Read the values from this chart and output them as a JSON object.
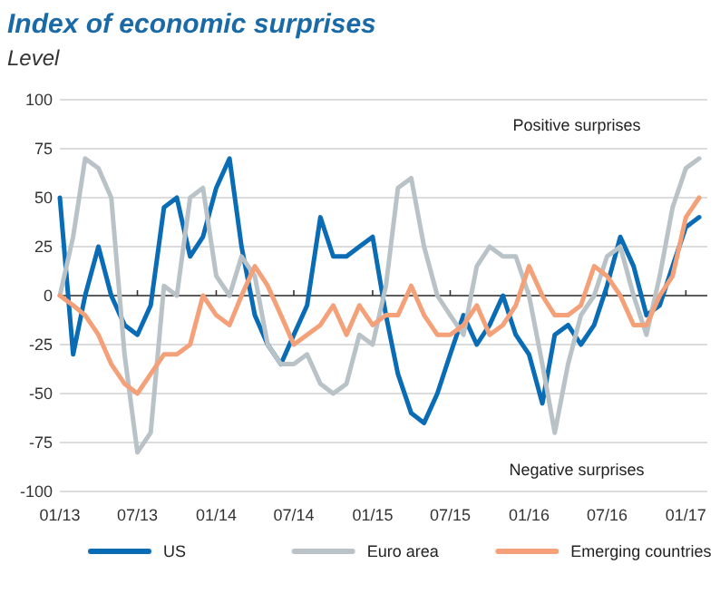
{
  "chart_data": {
    "type": "line",
    "title": "Index of economic surprises",
    "subtitle": "Level",
    "x": [
      "2013-01",
      "2013-02",
      "2013-03",
      "2013-04",
      "2013-05",
      "2013-06",
      "2013-07",
      "2013-08",
      "2013-09",
      "2013-10",
      "2013-11",
      "2013-12",
      "2014-01",
      "2014-02",
      "2014-03",
      "2014-04",
      "2014-05",
      "2014-06",
      "2014-07",
      "2014-08",
      "2014-09",
      "2014-10",
      "2014-11",
      "2014-12",
      "2015-01",
      "2015-02",
      "2015-03",
      "2015-04",
      "2015-05",
      "2015-06",
      "2015-07",
      "2015-08",
      "2015-09",
      "2015-10",
      "2015-11",
      "2015-12",
      "2016-01",
      "2016-02",
      "2016-03",
      "2016-04",
      "2016-05",
      "2016-06",
      "2016-07",
      "2016-08",
      "2016-09",
      "2016-10",
      "2016-11",
      "2016-12",
      "2017-01",
      "2017-02"
    ],
    "series": [
      {
        "name": "US",
        "color": "#0a6cb5",
        "values": [
          50,
          -30,
          0,
          25,
          0,
          -15,
          -20,
          -5,
          45,
          50,
          20,
          30,
          55,
          70,
          25,
          -10,
          -25,
          -35,
          -20,
          -5,
          40,
          20,
          20,
          25,
          30,
          -10,
          -40,
          -60,
          -65,
          -50,
          -30,
          -10,
          -25,
          -15,
          0,
          -20,
          -30,
          -55,
          -20,
          -15,
          -25,
          -15,
          5,
          30,
          15,
          -10,
          -5,
          15,
          35,
          40
        ]
      },
      {
        "name": "Euro area",
        "color": "#b9c3c7",
        "values": [
          0,
          30,
          70,
          65,
          50,
          -30,
          -80,
          -70,
          5,
          0,
          50,
          55,
          10,
          0,
          20,
          10,
          -25,
          -35,
          -35,
          -30,
          -45,
          -50,
          -45,
          -20,
          -25,
          5,
          55,
          60,
          25,
          0,
          -10,
          -20,
          15,
          25,
          20,
          20,
          0,
          -35,
          -70,
          -35,
          -10,
          0,
          20,
          25,
          0,
          -20,
          10,
          45,
          65,
          70
        ]
      },
      {
        "name": "Emerging countries",
        "color": "#f4a078",
        "values": [
          0,
          -5,
          -10,
          -20,
          -35,
          -45,
          -50,
          -40,
          -30,
          -30,
          -25,
          0,
          -10,
          -15,
          0,
          15,
          5,
          -10,
          -25,
          -20,
          -15,
          -5,
          -20,
          -5,
          -15,
          -10,
          -10,
          5,
          -10,
          -20,
          -20,
          -15,
          -5,
          -20,
          -15,
          -5,
          15,
          0,
          -10,
          -10,
          -5,
          15,
          10,
          0,
          -15,
          -15,
          0,
          10,
          40,
          50
        ]
      }
    ],
    "xlim": [
      "2013-01-01",
      "2017-02-20"
    ],
    "xticks": [
      {
        "value": "2013-01-01",
        "label": "01/13"
      },
      {
        "value": "2013-07-01",
        "label": "07/13"
      },
      {
        "value": "2014-01-01",
        "label": "01/14"
      },
      {
        "value": "2014-07-01",
        "label": "07/14"
      },
      {
        "value": "2015-01-01",
        "label": "01/15"
      },
      {
        "value": "2015-07-01",
        "label": "07/15"
      },
      {
        "value": "2016-01-01",
        "label": "01/16"
      },
      {
        "value": "2016-07-01",
        "label": "07/16"
      },
      {
        "value": "2017-01-01",
        "label": "01/17"
      }
    ],
    "ylim": [
      -100,
      100
    ],
    "yticks": [
      -100,
      -75,
      -50,
      -25,
      0,
      25,
      50,
      75,
      100
    ],
    "grid": "y",
    "legend": "bottom",
    "line_style": "solid",
    "annotations": [
      "Positive surprises",
      "Negative surprises"
    ]
  }
}
